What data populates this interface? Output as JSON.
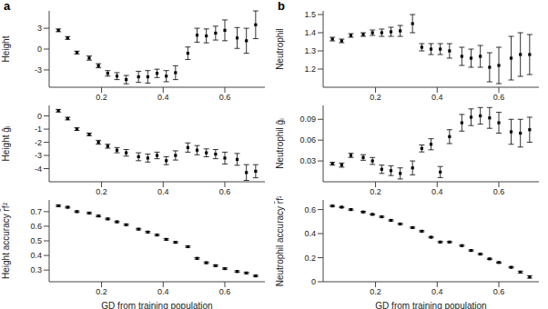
{
  "chart_data": [
    {
      "type": "scatter",
      "title": "a",
      "ylabel": "Height",
      "marker": "square",
      "color": "#000000",
      "x": [
        0.06,
        0.09,
        0.12,
        0.16,
        0.19,
        0.22,
        0.25,
        0.28,
        0.32,
        0.35,
        0.38,
        0.41,
        0.44,
        0.48,
        0.51,
        0.54,
        0.57,
        0.6,
        0.64,
        0.67,
        0.7
      ],
      "values": [
        2.7,
        1.6,
        -0.5,
        -1.3,
        -2.4,
        -3.5,
        -3.9,
        -4.4,
        -4.0,
        -4.0,
        -3.5,
        -3.9,
        -3.4,
        -0.6,
        2.0,
        1.9,
        2.3,
        2.7,
        1.6,
        1.2,
        3.5
      ],
      "errors": [
        0.2,
        0.2,
        0.2,
        0.3,
        0.3,
        0.4,
        0.5,
        0.6,
        0.8,
        0.9,
        0.6,
        0.8,
        1.0,
        0.9,
        1.0,
        1.0,
        1.0,
        1.5,
        1.5,
        1.8,
        2.0
      ],
      "xlim": [
        0.03,
        0.73
      ],
      "xticks": [
        0.2,
        0.4,
        0.6
      ],
      "ylim": [
        -5.5,
        5.5
      ],
      "yticks": [
        -3,
        0,
        3
      ]
    },
    {
      "type": "scatter",
      "ylabel": "Height ĝᵢ",
      "marker": "square",
      "color": "#000000",
      "x": [
        0.06,
        0.09,
        0.12,
        0.16,
        0.19,
        0.22,
        0.25,
        0.28,
        0.32,
        0.35,
        0.38,
        0.41,
        0.44,
        0.48,
        0.51,
        0.54,
        0.57,
        0.6,
        0.64,
        0.67,
        0.7
      ],
      "values": [
        0.4,
        -0.2,
        -1.0,
        -1.4,
        -2.0,
        -2.3,
        -2.6,
        -2.8,
        -3.1,
        -3.2,
        -3.0,
        -3.4,
        -3.0,
        -2.4,
        -2.6,
        -2.8,
        -2.9,
        -3.2,
        -3.3,
        -4.3,
        -4.2
      ],
      "errors": [
        0.1,
        0.1,
        0.1,
        0.1,
        0.15,
        0.15,
        0.2,
        0.25,
        0.3,
        0.3,
        0.25,
        0.3,
        0.35,
        0.35,
        0.35,
        0.3,
        0.35,
        0.45,
        0.45,
        0.6,
        0.5
      ],
      "xlim": [
        0.03,
        0.73
      ],
      "xticks": [
        0.2,
        0.4,
        0.6
      ],
      "ylim": [
        -5,
        0.8
      ],
      "yticks": [
        -4,
        -3,
        -2,
        -1,
        0
      ]
    },
    {
      "type": "scatter",
      "ylabel": "Height accuracy r̂f²",
      "xlabel": "GD from training population",
      "marker": "square",
      "color": "#000000",
      "x": [
        0.06,
        0.09,
        0.12,
        0.16,
        0.19,
        0.22,
        0.25,
        0.28,
        0.32,
        0.35,
        0.38,
        0.41,
        0.44,
        0.48,
        0.51,
        0.54,
        0.57,
        0.6,
        0.64,
        0.67,
        0.7
      ],
      "values": [
        0.74,
        0.73,
        0.7,
        0.69,
        0.67,
        0.65,
        0.63,
        0.61,
        0.58,
        0.56,
        0.54,
        0.51,
        0.49,
        0.46,
        0.38,
        0.35,
        0.33,
        0.31,
        0.29,
        0.28,
        0.26
      ],
      "errors": [
        0.005,
        0.005,
        0.005,
        0.005,
        0.005,
        0.005,
        0.005,
        0.005,
        0.005,
        0.005,
        0.005,
        0.005,
        0.005,
        0.005,
        0.005,
        0.005,
        0.005,
        0.005,
        0.005,
        0.005,
        0.005
      ],
      "xlim": [
        0.03,
        0.73
      ],
      "xticks": [
        0.2,
        0.4,
        0.6
      ],
      "ylim": [
        0.22,
        0.78
      ],
      "yticks": [
        0.3,
        0.4,
        0.5,
        0.6,
        0.7
      ]
    },
    {
      "type": "scatter",
      "title": "b",
      "ylabel": "Neutrophil",
      "marker": "square",
      "color": "#000000",
      "x": [
        0.06,
        0.09,
        0.12,
        0.16,
        0.19,
        0.22,
        0.25,
        0.28,
        0.32,
        0.35,
        0.38,
        0.41,
        0.44,
        0.48,
        0.51,
        0.54,
        0.57,
        0.6,
        0.64,
        0.67,
        0.7
      ],
      "values": [
        1.365,
        1.355,
        1.385,
        1.39,
        1.4,
        1.4,
        1.405,
        1.41,
        1.45,
        1.32,
        1.31,
        1.31,
        1.3,
        1.27,
        1.26,
        1.27,
        1.21,
        1.22,
        1.26,
        1.28,
        1.28
      ],
      "errors": [
        0.01,
        0.01,
        0.01,
        0.01,
        0.015,
        0.02,
        0.025,
        0.03,
        0.05,
        0.02,
        0.03,
        0.03,
        0.04,
        0.05,
        0.05,
        0.06,
        0.08,
        0.1,
        0.12,
        0.12,
        0.11
      ],
      "xlim": [
        0.03,
        0.73
      ],
      "xticks": [
        0.2,
        0.4,
        0.6
      ],
      "ylim": [
        1.1,
        1.52
      ],
      "yticks": [
        1.2,
        1.3,
        1.4,
        1.5
      ]
    },
    {
      "type": "scatter",
      "ylabel": "Neutrophil ĝᵢ",
      "marker": "square",
      "color": "#000000",
      "x": [
        0.06,
        0.09,
        0.12,
        0.16,
        0.19,
        0.22,
        0.25,
        0.28,
        0.32,
        0.35,
        0.38,
        0.41,
        0.44,
        0.48,
        0.51,
        0.54,
        0.57,
        0.6,
        0.64,
        0.67,
        0.7
      ],
      "values": [
        0.026,
        0.024,
        0.038,
        0.035,
        0.03,
        0.018,
        0.016,
        0.012,
        0.02,
        0.048,
        0.054,
        0.014,
        0.065,
        0.085,
        0.093,
        0.095,
        0.092,
        0.085,
        0.072,
        0.07,
        0.075
      ],
      "errors": [
        0.002,
        0.003,
        0.003,
        0.004,
        0.005,
        0.006,
        0.007,
        0.008,
        0.01,
        0.005,
        0.008,
        0.008,
        0.01,
        0.012,
        0.012,
        0.012,
        0.015,
        0.015,
        0.018,
        0.02,
        0.018
      ],
      "xlim": [
        0.03,
        0.73
      ],
      "xticks": [
        0.2,
        0.4,
        0.6
      ],
      "ylim": [
        0,
        0.11
      ],
      "yticks": [
        0.03,
        0.06,
        0.09
      ]
    },
    {
      "type": "scatter",
      "ylabel": "Neutrophil accuracy r̂f²",
      "xlabel": "GD from training population",
      "marker": "square",
      "color": "#000000",
      "x": [
        0.06,
        0.09,
        0.12,
        0.16,
        0.19,
        0.22,
        0.25,
        0.28,
        0.32,
        0.35,
        0.38,
        0.41,
        0.44,
        0.48,
        0.51,
        0.54,
        0.57,
        0.6,
        0.64,
        0.67,
        0.7
      ],
      "values": [
        0.63,
        0.62,
        0.6,
        0.58,
        0.56,
        0.54,
        0.51,
        0.48,
        0.45,
        0.42,
        0.37,
        0.33,
        0.33,
        0.3,
        0.26,
        0.23,
        0.19,
        0.16,
        0.12,
        0.08,
        0.04
      ],
      "errors": [
        0.005,
        0.005,
        0.005,
        0.005,
        0.005,
        0.005,
        0.005,
        0.005,
        0.005,
        0.005,
        0.005,
        0.005,
        0.005,
        0.005,
        0.005,
        0.005,
        0.005,
        0.005,
        0.005,
        0.008,
        0.01
      ],
      "xlim": [
        0.03,
        0.73
      ],
      "xticks": [
        0.2,
        0.4,
        0.6
      ],
      "ylim": [
        0,
        0.68
      ],
      "yticks": [
        0,
        0.2,
        0.4,
        0.6
      ]
    }
  ]
}
